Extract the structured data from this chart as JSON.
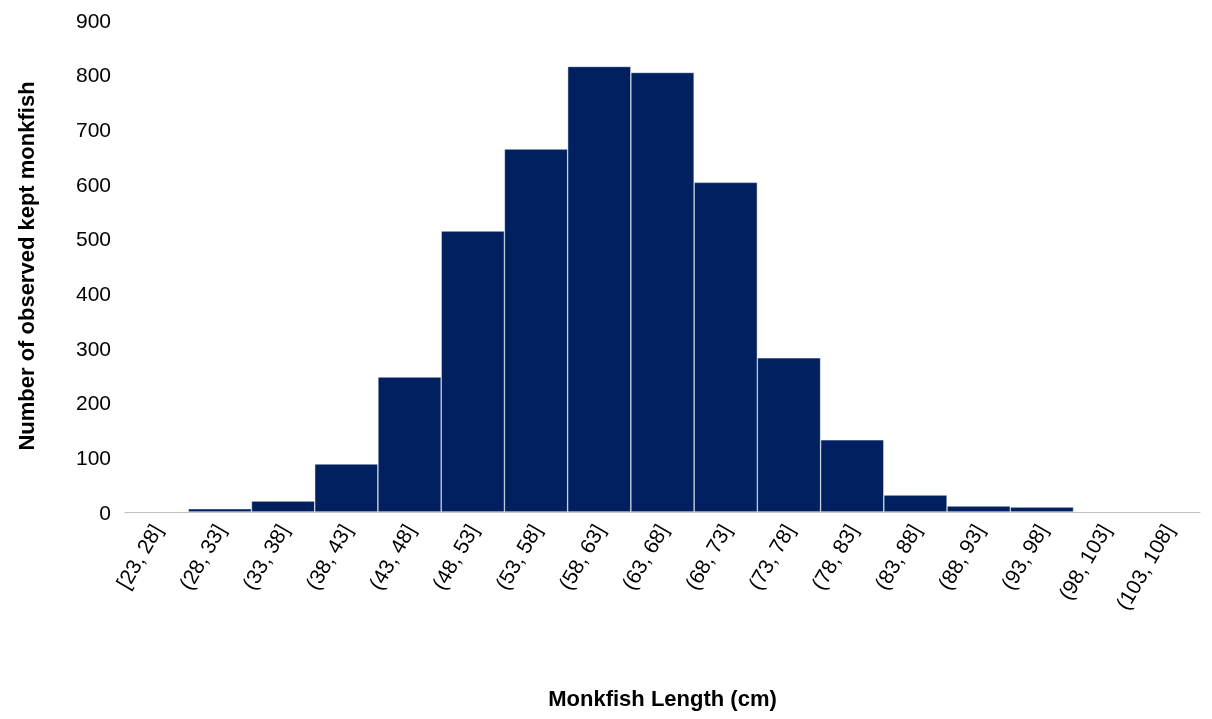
{
  "chart_data": {
    "type": "bar",
    "xlabel": "Monkfish Length (cm)",
    "ylabel": "Number of observed kept monkfish",
    "categories": [
      "[23, 28]",
      "(28, 33]",
      "(33, 38]",
      "(38, 43]",
      "(43, 48]",
      "(48, 53]",
      "(53, 58]",
      "(58, 63]",
      "(63, 68]",
      "(68, 73]",
      "(73, 78]",
      "(78, 83]",
      "(83, 88]",
      "(88, 93]",
      "(93, 98]",
      "(98, 103]",
      "(103, 108]"
    ],
    "values": [
      0,
      6,
      20,
      88,
      247,
      514,
      664,
      815,
      804,
      603,
      282,
      132,
      31,
      11,
      9,
      0,
      0
    ],
    "color": "#002060",
    "ylim": [
      0,
      900
    ],
    "yticks": [
      0,
      100,
      200,
      300,
      400,
      500,
      600,
      700,
      800,
      900
    ],
    "grid": false
  }
}
